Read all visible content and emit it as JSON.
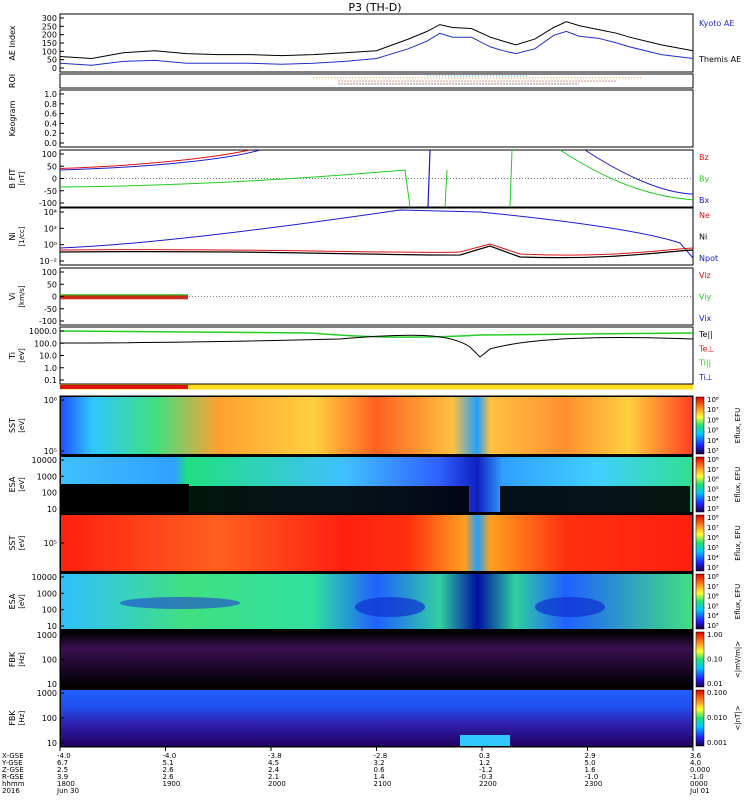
{
  "title": "P3 (TH-D)",
  "colors": {
    "kyoto": "#1f2fc8",
    "themis": "#000000",
    "red": "#e01010",
    "green": "#22cc22",
    "blue": "#1a1acc",
    "black": "#000000",
    "roi_orange": "#f09030",
    "roi_cyan": "#30c8e0"
  },
  "chart_data": [
    {
      "type": "line",
      "ylabel": "AE Index",
      "ylim": [
        0,
        300
      ],
      "yticks": [
        "300",
        "250",
        "200",
        "150",
        "100",
        "50",
        "0"
      ],
      "x": [
        0,
        0.05,
        0.1,
        0.15,
        0.2,
        0.25,
        0.3,
        0.35,
        0.4,
        0.45,
        0.5,
        0.55,
        0.58,
        0.6,
        0.62,
        0.65,
        0.68,
        0.7,
        0.72,
        0.75,
        0.78,
        0.8,
        0.82,
        0.85,
        0.88,
        0.9,
        0.95,
        1.0
      ],
      "series": [
        {
          "name": "Kyoto AE",
          "color": "#1f2fc8",
          "values": [
            45,
            35,
            55,
            60,
            45,
            45,
            45,
            40,
            45,
            55,
            70,
            120,
            160,
            200,
            180,
            180,
            130,
            110,
            95,
            120,
            190,
            210,
            185,
            175,
            150,
            130,
            90,
            70
          ]
        },
        {
          "name": "Themis AE",
          "color": "#000000",
          "values": [
            80,
            70,
            100,
            110,
            95,
            90,
            90,
            85,
            90,
            100,
            110,
            170,
            210,
            245,
            230,
            225,
            180,
            160,
            140,
            170,
            230,
            260,
            240,
            220,
            200,
            180,
            140,
            110
          ]
        }
      ]
    },
    {
      "type": "line",
      "ylabel": "ROI",
      "series": []
    },
    {
      "type": "line",
      "ylabel": "Keogram",
      "ylim": [
        0,
        1
      ],
      "yticks": [
        "1.0",
        "0.8",
        "0.6",
        "0.4",
        "0.2",
        "0.0"
      ],
      "series": []
    },
    {
      "type": "line",
      "ylabel": "B FIT",
      "unit": "[nT]",
      "ylim": [
        -100,
        100
      ],
      "yticks": [
        "100",
        "50",
        "0",
        "-50",
        "-100"
      ],
      "series": [
        {
          "name": "Bz",
          "color": "#e01010"
        },
        {
          "name": "By",
          "color": "#22cc22"
        },
        {
          "name": "Bx",
          "color": "#1a1acc"
        }
      ]
    },
    {
      "type": "line",
      "ylabel": "Ni",
      "unit": "[1/cc]",
      "yticks": [
        "10⁴",
        "10²",
        "10⁰",
        "10⁻²"
      ],
      "series": [
        {
          "name": "Ne",
          "color": "#e01010"
        },
        {
          "name": "Ni",
          "color": "#000000"
        },
        {
          "name": "Npot",
          "color": "#1a1acc"
        }
      ]
    },
    {
      "type": "line",
      "ylabel": "Vi",
      "unit": "[km/s]",
      "ylim": [
        -100,
        100
      ],
      "yticks": [
        "100",
        "50",
        "0",
        "-50",
        "-100"
      ],
      "series": [
        {
          "name": "Viz",
          "color": "#e01010"
        },
        {
          "name": "Viy",
          "color": "#22cc22"
        },
        {
          "name": "Vix",
          "color": "#1a1acc"
        }
      ]
    },
    {
      "type": "line",
      "ylabel": "Ti",
      "unit": "[eV]",
      "yticks": [
        "1000.0",
        "100.0",
        "10.0",
        "1.0",
        "0.1"
      ],
      "series": [
        {
          "name": "Te||",
          "color": "#000000"
        },
        {
          "name": "Te⊥",
          "color": "#e01010"
        },
        {
          "name": "Ti||",
          "color": "#22cc22"
        },
        {
          "name": "Ti⊥",
          "color": "#1a1acc"
        }
      ]
    },
    {
      "type": "heatmap",
      "ylabel": "SST",
      "unit": "[eV]",
      "yticks": [
        "10⁶",
        "10⁵"
      ],
      "zlabel": "Eflux, EFU",
      "zticks": [
        "10⁸",
        "10⁷",
        "10⁶",
        "10⁵",
        "10⁴",
        "10³"
      ]
    },
    {
      "type": "heatmap",
      "ylabel": "ESA",
      "unit": "[eV]",
      "yticks": [
        "10000",
        "1000",
        "100",
        "10"
      ],
      "zlabel": "Eflux, EFU",
      "zticks": [
        "10⁸",
        "10⁷",
        "10⁶",
        "10⁵",
        "10⁴",
        "10³"
      ]
    },
    {
      "type": "heatmap",
      "ylabel": "SST",
      "unit": "[eV]",
      "yticks": [
        "10⁵"
      ],
      "zlabel": "Eflux, EFU",
      "zticks": [
        "10⁸",
        "10⁷",
        "10⁶",
        "10⁵",
        "10⁴",
        "10³"
      ]
    },
    {
      "type": "heatmap",
      "ylabel": "ESA",
      "unit": "[eV]",
      "yticks": [
        "10000",
        "1000",
        "100",
        "10"
      ],
      "zlabel": "Eflux, EFU",
      "zticks": [
        "10⁸",
        "10⁷",
        "10⁶",
        "10⁵",
        "10⁴",
        "10³"
      ]
    },
    {
      "type": "heatmap",
      "ylabel": "FBK",
      "unit": "[Hz]",
      "yticks": [
        "1000",
        "100",
        "10"
      ],
      "zlabel": "<|mV/m|>",
      "zticks": [
        "1.00",
        "0.10",
        "0.01"
      ]
    },
    {
      "type": "heatmap",
      "ylabel": "FBK",
      "unit": "[Hz]",
      "yticks": [
        "1000",
        "100",
        "10"
      ],
      "zlabel": "<|nT|>",
      "zticks": [
        "0.100",
        "0.010",
        "0.001"
      ]
    }
  ],
  "legends": {
    "ae": [
      "Kyoto AE",
      "Themis AE"
    ],
    "b": [
      "Bz",
      "By",
      "Bx"
    ],
    "n": [
      "Ne",
      "Ni",
      "Npot"
    ],
    "v": [
      "Viz",
      "Viy",
      "Vix"
    ],
    "t": [
      "Te||",
      "Te⊥",
      "Ti||",
      "Ti⊥"
    ]
  },
  "ephemeris": {
    "labels": [
      "X-GSE",
      "Y-GSE",
      "Z-GSE",
      "R-GSE",
      "hhmm",
      "2016"
    ],
    "columns": [
      {
        "x": "-4.0",
        "y": "6.7",
        "z": "2.5",
        "r": "3.9",
        "hhmm": "1800",
        "date": "Jun 30"
      },
      {
        "x": "-4.0",
        "y": "5.1",
        "z": "2.6",
        "r": "2.6",
        "hhmm": "1900",
        "date": ""
      },
      {
        "x": "-3.8",
        "y": "4.5",
        "z": "2.4",
        "r": "2.1",
        "hhmm": "2000",
        "date": ""
      },
      {
        "x": "-2.8",
        "y": "3.2",
        "z": "0.6",
        "r": "1.4",
        "hhmm": "2100",
        "date": ""
      },
      {
        "x": "0.3",
        "y": "1.2",
        "z": "-1.2",
        "r": "-0.3",
        "hhmm": "2200",
        "date": ""
      },
      {
        "x": "2.9",
        "y": "5.0",
        "z": "1.6",
        "r": "-1.0",
        "hhmm": "2300",
        "date": ""
      },
      {
        "x": "3.6",
        "y": "4.0",
        "z": "0.000",
        "r": "-1.0",
        "hhmm": "0000",
        "date": "Jul 01"
      }
    ]
  }
}
